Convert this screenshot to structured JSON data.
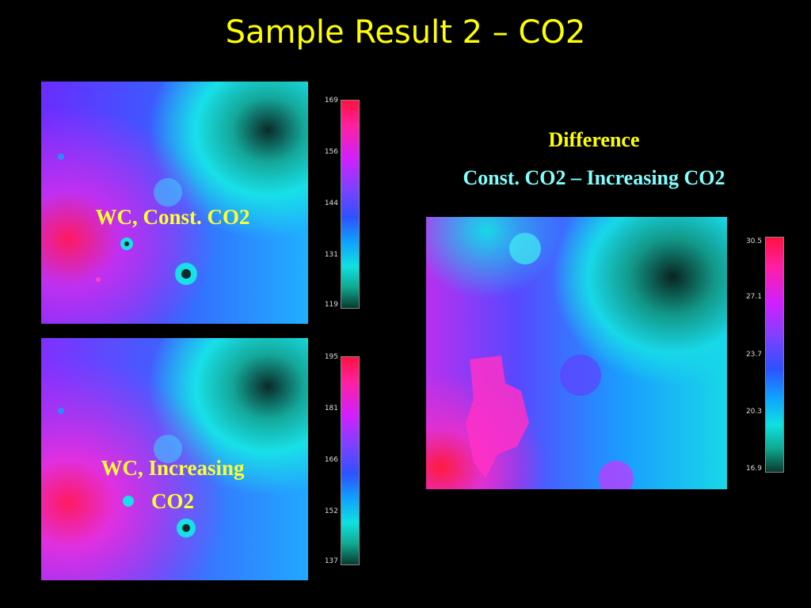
{
  "slide": {
    "title": "Sample Result 2 – CO2"
  },
  "panels": {
    "const": {
      "label": "WC, Const. CO2",
      "colorbar_ticks": [
        "169",
        "156",
        "144",
        "131",
        "119"
      ]
    },
    "increasing": {
      "label_line1": "WC, Increasing",
      "label_line2": "CO2",
      "colorbar_ticks": [
        "195",
        "181",
        "166",
        "152",
        "137"
      ]
    },
    "difference": {
      "heading": "Difference",
      "subheading": "Const. CO2 – Increasing CO2",
      "colorbar_ticks": [
        "30.5",
        "27.1",
        "23.7",
        "20.3",
        "16.9"
      ]
    }
  },
  "colors": {
    "title": "#ffff00",
    "panel_label": "#ffff33",
    "difference_heading": "#ffff00",
    "difference_subheading": "#80ffff"
  }
}
